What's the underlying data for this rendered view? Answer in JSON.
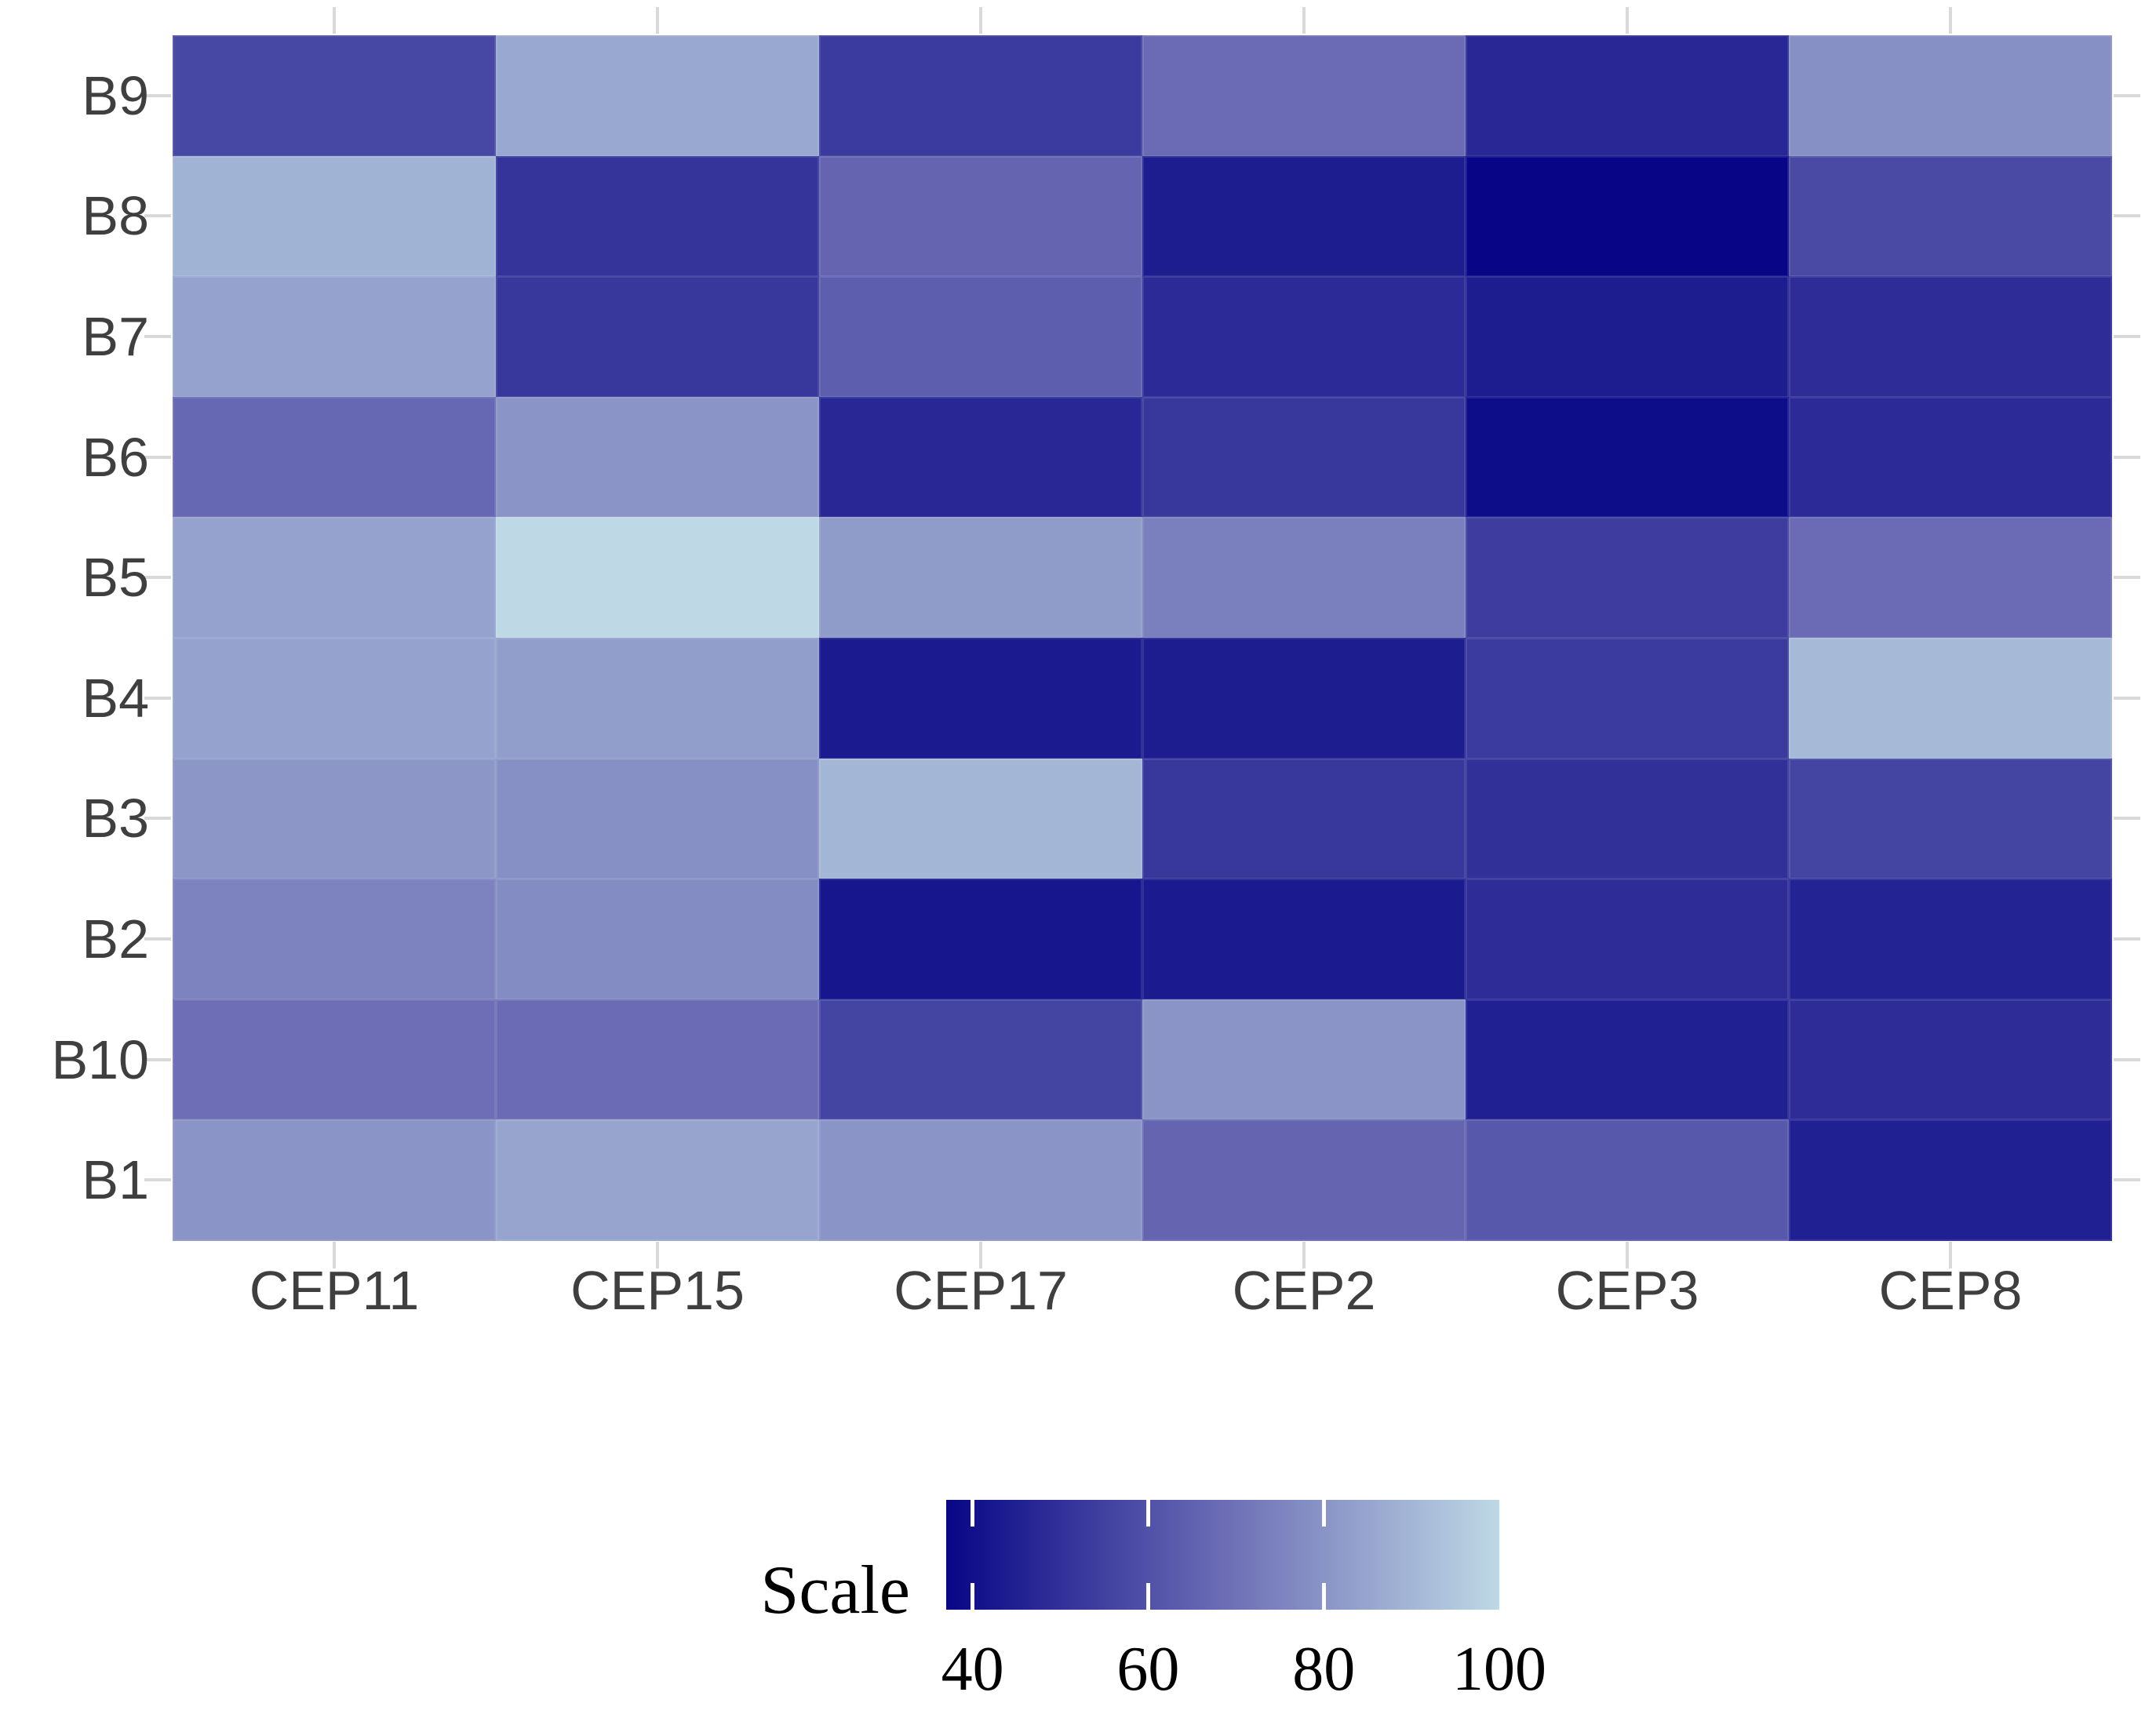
{
  "chart_data": {
    "type": "heatmap",
    "title": "",
    "x_categories": [
      "CEP11",
      "CEP15",
      "CEP17",
      "CEP2",
      "CEP3",
      "CEP8"
    ],
    "y_categories": [
      "B9",
      "B8",
      "B7",
      "B6",
      "B5",
      "B4",
      "B3",
      "B2",
      "B10",
      "B1"
    ],
    "values_by_row": [
      [
        57,
        86,
        53,
        68,
        47,
        79
      ],
      [
        89,
        51,
        66,
        44,
        37,
        58
      ],
      [
        84,
        52,
        64,
        48,
        44,
        49
      ],
      [
        67,
        80,
        47,
        52,
        39,
        48
      ],
      [
        84,
        100,
        82,
        74,
        54,
        68
      ],
      [
        84,
        83,
        43,
        44,
        53,
        91
      ],
      [
        81,
        79,
        90,
        52,
        50,
        56
      ],
      [
        75,
        78,
        42,
        43,
        49,
        46
      ],
      [
        69,
        68,
        56,
        80,
        45,
        49
      ],
      [
        80,
        85,
        80,
        66,
        62,
        45
      ]
    ],
    "legend": {
      "title": "Scale",
      "tick_labels": [
        "40",
        "60",
        "80",
        "100"
      ],
      "tick_values": [
        40,
        60,
        80,
        100
      ],
      "range": [
        37,
        100
      ],
      "position": "bottom"
    },
    "color_scale": {
      "low": "#080686",
      "mid": "#6a6bb4",
      "high": "#bed8e5",
      "mid_value": 68
    },
    "axes": {
      "tick_color": "#d9d9d9",
      "label_color": "#3f3f3f",
      "ticks_on_all_sides": true,
      "grid": false,
      "background": "#ffffff"
    }
  }
}
